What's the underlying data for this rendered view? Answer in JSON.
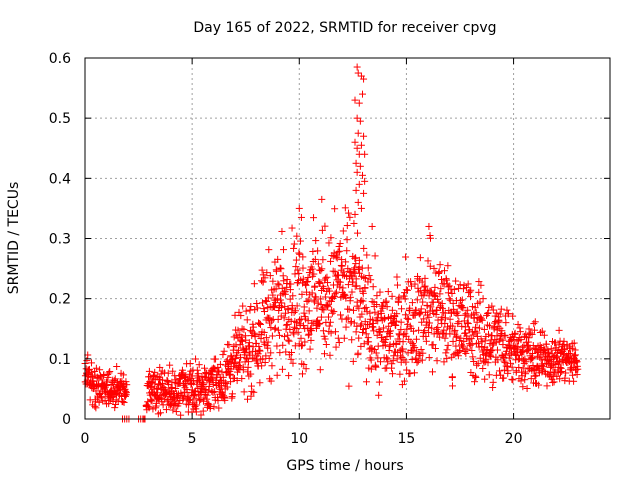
{
  "chart_data": {
    "type": "scatter",
    "title": "Day 165 of 2022, SRMTID for receiver cpvg",
    "xlabel": "GPS time / hours",
    "ylabel": "SRMTID / TECUs",
    "xlim": [
      0,
      24.5
    ],
    "ylim": [
      0,
      0.6
    ],
    "xticks": [
      0,
      5,
      10,
      15,
      20
    ],
    "xtick_labels": [
      "0",
      "5",
      "10",
      "15",
      "20"
    ],
    "yticks": [
      0,
      0.1,
      0.2,
      0.3,
      0.4,
      0.5,
      0.6
    ],
    "ytick_labels": [
      "0",
      "0.1",
      "0.2",
      "0.3",
      "0.4",
      "0.5",
      "0.6"
    ],
    "grid": true,
    "marker": "+",
    "series": [
      {
        "name": "SRMTID",
        "color": "#ff0000",
        "profile": {
          "x": [
            0.0,
            0.5,
            1.0,
            1.5,
            2.0,
            2.5,
            3.0,
            3.5,
            4.0,
            4.5,
            5.0,
            5.5,
            6.0,
            6.5,
            7.0,
            7.5,
            8.0,
            8.5,
            9.0,
            9.5,
            10.0,
            10.5,
            11.0,
            11.5,
            12.0,
            12.5,
            13.0,
            13.5,
            14.0,
            14.5,
            15.0,
            15.5,
            16.0,
            16.5,
            17.0,
            17.5,
            18.0,
            18.5,
            19.0,
            19.5,
            20.0,
            20.5,
            21.0,
            21.5,
            22.0,
            22.5,
            23.0
          ],
          "y": [
            0.065,
            0.055,
            0.045,
            0.05,
            0.045,
            0.0,
            0.05,
            0.045,
            0.04,
            0.05,
            0.055,
            0.05,
            0.06,
            0.07,
            0.1,
            0.11,
            0.14,
            0.17,
            0.19,
            0.2,
            0.2,
            0.2,
            0.2,
            0.21,
            0.22,
            0.22,
            0.17,
            0.15,
            0.14,
            0.15,
            0.16,
            0.17,
            0.18,
            0.18,
            0.17,
            0.16,
            0.15,
            0.14,
            0.13,
            0.13,
            0.12,
            0.11,
            0.1,
            0.1,
            0.1,
            0.1,
            0.09
          ],
          "spread": [
            0.02,
            0.02,
            0.015,
            0.015,
            0.01,
            0.0,
            0.02,
            0.02,
            0.02,
            0.02,
            0.02,
            0.02,
            0.02,
            0.025,
            0.03,
            0.035,
            0.04,
            0.05,
            0.05,
            0.05,
            0.055,
            0.055,
            0.05,
            0.055,
            0.06,
            0.06,
            0.05,
            0.045,
            0.04,
            0.04,
            0.045,
            0.045,
            0.045,
            0.045,
            0.04,
            0.04,
            0.04,
            0.035,
            0.035,
            0.035,
            0.03,
            0.025,
            0.025,
            0.02,
            0.02,
            0.02,
            0.015
          ]
        },
        "zero_points_x": [
          1.75,
          1.85,
          1.95,
          2.05,
          2.5,
          2.6,
          2.7,
          2.75,
          2.8
        ],
        "spike_points": [
          {
            "x": 12.7,
            "y": 0.585
          },
          {
            "x": 12.75,
            "y": 0.575
          },
          {
            "x": 12.9,
            "y": 0.57
          },
          {
            "x": 13.0,
            "y": 0.565
          },
          {
            "x": 12.6,
            "y": 0.53
          },
          {
            "x": 12.8,
            "y": 0.525
          },
          {
            "x": 12.95,
            "y": 0.54
          },
          {
            "x": 12.7,
            "y": 0.5
          },
          {
            "x": 12.85,
            "y": 0.495
          },
          {
            "x": 12.75,
            "y": 0.475
          },
          {
            "x": 13.0,
            "y": 0.47
          },
          {
            "x": 12.6,
            "y": 0.46
          },
          {
            "x": 12.7,
            "y": 0.45
          },
          {
            "x": 12.8,
            "y": 0.44
          },
          {
            "x": 12.9,
            "y": 0.455
          },
          {
            "x": 13.05,
            "y": 0.44
          },
          {
            "x": 12.65,
            "y": 0.425
          },
          {
            "x": 12.85,
            "y": 0.42
          },
          {
            "x": 12.7,
            "y": 0.41
          },
          {
            "x": 12.95,
            "y": 0.405
          },
          {
            "x": 13.05,
            "y": 0.395
          },
          {
            "x": 12.8,
            "y": 0.39
          },
          {
            "x": 12.65,
            "y": 0.38
          },
          {
            "x": 13.0,
            "y": 0.375
          },
          {
            "x": 12.75,
            "y": 0.36
          },
          {
            "x": 12.9,
            "y": 0.35
          },
          {
            "x": 12.6,
            "y": 0.34
          },
          {
            "x": 11.05,
            "y": 0.365
          },
          {
            "x": 10.0,
            "y": 0.35
          },
          {
            "x": 10.1,
            "y": 0.335
          },
          {
            "x": 12.55,
            "y": 0.325
          },
          {
            "x": 13.4,
            "y": 0.32
          },
          {
            "x": 16.05,
            "y": 0.32
          },
          {
            "x": 16.1,
            "y": 0.305
          },
          {
            "x": 10.15,
            "y": 0.075
          },
          {
            "x": 17.15,
            "y": 0.055
          }
        ]
      }
    ]
  }
}
